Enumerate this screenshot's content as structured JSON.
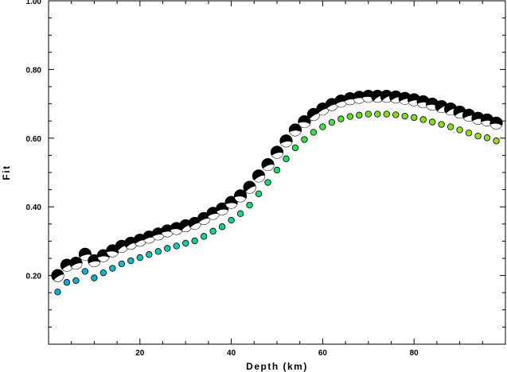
{
  "chart_data": {
    "type": "scatter",
    "title": "",
    "xlabel": "Depth (km)",
    "ylabel": "Fit",
    "xlim": [
      0,
      100
    ],
    "ylim": [
      0,
      1.0
    ],
    "grid": false,
    "x_ticks": [
      20,
      40,
      60,
      80
    ],
    "x_tick_labels": [
      "20",
      "40",
      "60",
      "80"
    ],
    "y_ticks": [
      0.2,
      0.4,
      0.6,
      0.8,
      1.0
    ],
    "y_tick_labels": [
      "0.20",
      "0.40",
      "0.60",
      "0.80",
      "1.00"
    ],
    "series": [
      {
        "marker": "focal-mechanism-beachball",
        "colors": {
          "fill": "#000000",
          "quadrant": "#ffffff"
        },
        "points": [
          [
            2,
            0.2
          ],
          [
            4,
            0.23
          ],
          [
            6,
            0.236
          ],
          [
            8,
            0.262
          ],
          [
            10,
            0.243
          ],
          [
            12,
            0.258
          ],
          [
            14,
            0.272
          ],
          [
            16,
            0.285
          ],
          [
            18,
            0.294
          ],
          [
            20,
            0.303
          ],
          [
            22,
            0.312
          ],
          [
            24,
            0.321
          ],
          [
            26,
            0.33
          ],
          [
            28,
            0.337
          ],
          [
            30,
            0.345
          ],
          [
            32,
            0.352
          ],
          [
            34,
            0.366
          ],
          [
            36,
            0.381
          ],
          [
            38,
            0.394
          ],
          [
            40,
            0.413
          ],
          [
            42,
            0.432
          ],
          [
            44,
            0.457
          ],
          [
            46,
            0.49
          ],
          [
            48,
            0.523
          ],
          [
            50,
            0.559
          ],
          [
            52,
            0.592
          ],
          [
            54,
            0.624
          ],
          [
            56,
            0.648
          ],
          [
            58,
            0.669
          ],
          [
            60,
            0.685
          ],
          [
            62,
            0.698
          ],
          [
            64,
            0.708
          ],
          [
            66,
            0.715
          ],
          [
            68,
            0.719
          ],
          [
            70,
            0.722
          ],
          [
            72,
            0.722
          ],
          [
            74,
            0.722
          ],
          [
            76,
            0.72
          ],
          [
            78,
            0.716
          ],
          [
            80,
            0.712
          ],
          [
            82,
            0.706
          ],
          [
            84,
            0.699
          ],
          [
            86,
            0.692
          ],
          [
            88,
            0.685
          ],
          [
            90,
            0.676
          ],
          [
            92,
            0.667
          ],
          [
            94,
            0.658
          ],
          [
            96,
            0.653
          ],
          [
            98,
            0.644
          ]
        ]
      },
      {
        "marker": "dot",
        "color_scale": [
          "#1aa3d9",
          "#11c8b0",
          "#22d86a",
          "#7ddc1c",
          "#9bd92a"
        ],
        "points": [
          [
            2,
            0.152
          ],
          [
            4,
            0.18
          ],
          [
            6,
            0.185
          ],
          [
            8,
            0.212
          ],
          [
            10,
            0.193
          ],
          [
            12,
            0.208
          ],
          [
            14,
            0.221
          ],
          [
            16,
            0.234
          ],
          [
            18,
            0.243
          ],
          [
            20,
            0.252
          ],
          [
            22,
            0.261
          ],
          [
            24,
            0.27
          ],
          [
            26,
            0.279
          ],
          [
            28,
            0.286
          ],
          [
            30,
            0.294
          ],
          [
            32,
            0.301
          ],
          [
            34,
            0.314
          ],
          [
            36,
            0.329
          ],
          [
            38,
            0.342
          ],
          [
            40,
            0.361
          ],
          [
            42,
            0.38
          ],
          [
            44,
            0.405
          ],
          [
            46,
            0.438
          ],
          [
            48,
            0.471
          ],
          [
            50,
            0.507
          ],
          [
            52,
            0.54
          ],
          [
            54,
            0.572
          ],
          [
            56,
            0.596
          ],
          [
            58,
            0.617
          ],
          [
            60,
            0.633
          ],
          [
            62,
            0.646
          ],
          [
            64,
            0.656
          ],
          [
            66,
            0.663
          ],
          [
            68,
            0.667
          ],
          [
            70,
            0.67
          ],
          [
            72,
            0.67
          ],
          [
            74,
            0.67
          ],
          [
            76,
            0.668
          ],
          [
            78,
            0.664
          ],
          [
            80,
            0.66
          ],
          [
            82,
            0.654
          ],
          [
            84,
            0.647
          ],
          [
            86,
            0.64
          ],
          [
            88,
            0.633
          ],
          [
            90,
            0.624
          ],
          [
            92,
            0.615
          ],
          [
            94,
            0.606
          ],
          [
            96,
            0.601
          ],
          [
            98,
            0.592
          ]
        ]
      }
    ]
  }
}
